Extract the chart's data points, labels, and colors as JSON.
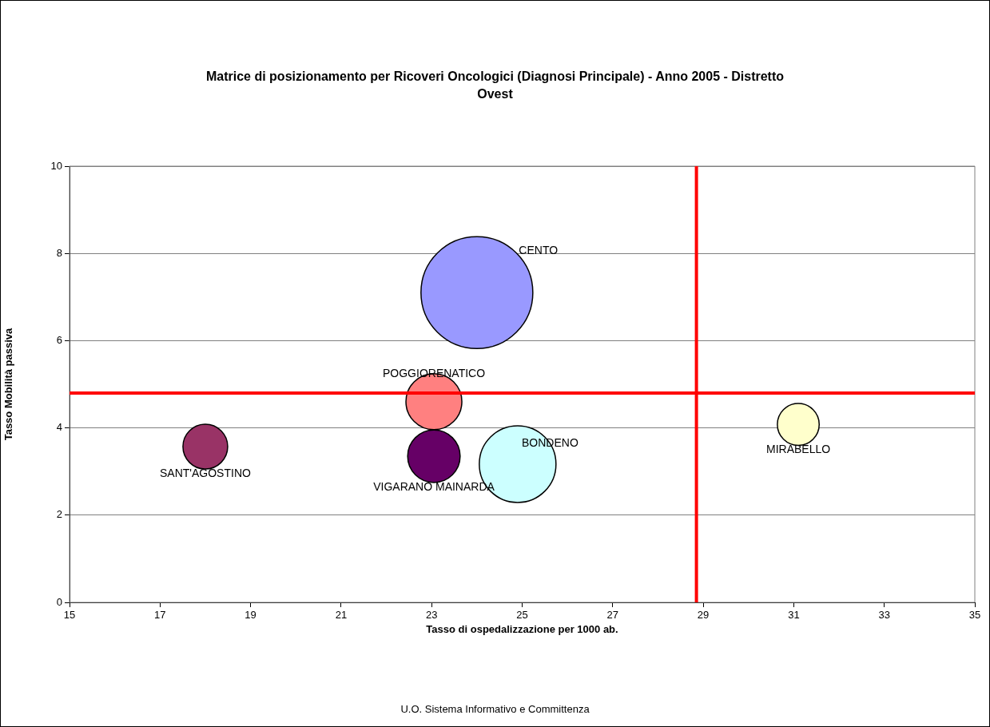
{
  "chart_data": {
    "type": "bubble",
    "title": "Matrice di posizionamento per Ricoveri Oncologici (Diagnosi Principale) - Anno 2005 - Distretto Ovest",
    "xlabel": "Tasso di ospedalizzazione per 1000 ab.",
    "ylabel": "Tasso Mobilità passiva",
    "series": [
      {
        "name": "SANT'AGOSTINO",
        "color": "#993366",
        "x": [
          18.0
        ],
        "values": [
          3.57
        ],
        "sizes": [
          0.16
        ]
      },
      {
        "name": "CENTO",
        "color": "#9999ff",
        "x": [
          24.0
        ],
        "values": [
          7.1
        ],
        "sizes": [
          1
        ]
      },
      {
        "name": "POGGIORENATICO",
        "color": "#ff8080",
        "x": [
          23.05
        ],
        "values": [
          4.6
        ],
        "sizes": [
          0.25
        ]
      },
      {
        "name": "VIGARANO MAINARDA",
        "color": "#660066",
        "x": [
          23.05
        ],
        "values": [
          3.35
        ],
        "sizes": [
          0.22
        ]
      },
      {
        "name": "BONDENO",
        "color": "#ccffff",
        "x": [
          24.9
        ],
        "values": [
          3.17
        ],
        "sizes": [
          0.47
        ]
      },
      {
        "name": "MIRABELLO",
        "color": "#ffffcc",
        "x": [
          31.1
        ],
        "values": [
          4.08
        ],
        "sizes": [
          0.14
        ]
      }
    ],
    "xlim": [
      15,
      35
    ],
    "xticks": [
      15,
      17,
      19,
      21,
      23,
      25,
      27,
      29,
      31,
      33,
      35
    ],
    "ylim": [
      0,
      10
    ],
    "yticks": [
      0,
      2,
      4,
      6,
      8,
      10
    ],
    "grid": "y",
    "legend": false,
    "ref_lines": [
      {
        "axis": "x",
        "value": 28.85,
        "color": "#ff0000"
      },
      {
        "axis": "y",
        "value": 4.8,
        "color": "#ff0000"
      }
    ],
    "annotations": [
      "U.O. Sistema Informativo e Committenza"
    ]
  }
}
